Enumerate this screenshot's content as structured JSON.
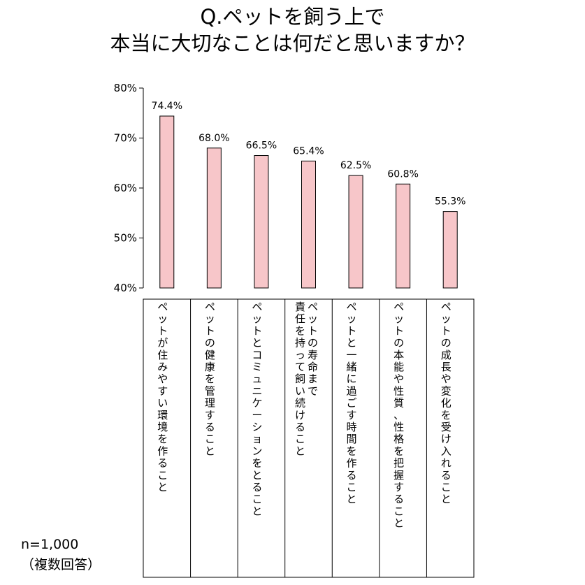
{
  "chart_data": {
    "type": "bar",
    "title_lines": [
      "Q.ペットを飼う上で",
      "本当に大切なことは何だと思いますか？"
    ],
    "categories": [
      [
        "ペットが住みやすい環境を作ること"
      ],
      [
        "ペットの健康を管理すること"
      ],
      [
        "ペットとコミュニケーションをとること"
      ],
      [
        "ペットの寿命まで",
        "責任を持って飼い続けること"
      ],
      [
        "ペットと一緒に過ごす時間を作ること"
      ],
      [
        "ペットの本能や性質、性格を把握すること"
      ],
      [
        "ペットの成長や変化を受け入れること"
      ]
    ],
    "values": [
      74.4,
      68.0,
      66.5,
      65.4,
      62.5,
      60.8,
      55.3
    ],
    "value_labels": [
      "74.4%",
      "68.0%",
      "66.5%",
      "65.4%",
      "62.5%",
      "60.8%",
      "55.3%"
    ],
    "yticks": [
      40,
      50,
      60,
      70,
      80
    ],
    "ytick_labels": [
      "40%",
      "50%",
      "60%",
      "70%",
      "80%"
    ],
    "ylim": [
      40,
      80
    ],
    "bar_color": "#f7c6c9",
    "grid": false,
    "legend": "none"
  },
  "notes": [
    "n=1,000",
    "（複数回答）"
  ]
}
